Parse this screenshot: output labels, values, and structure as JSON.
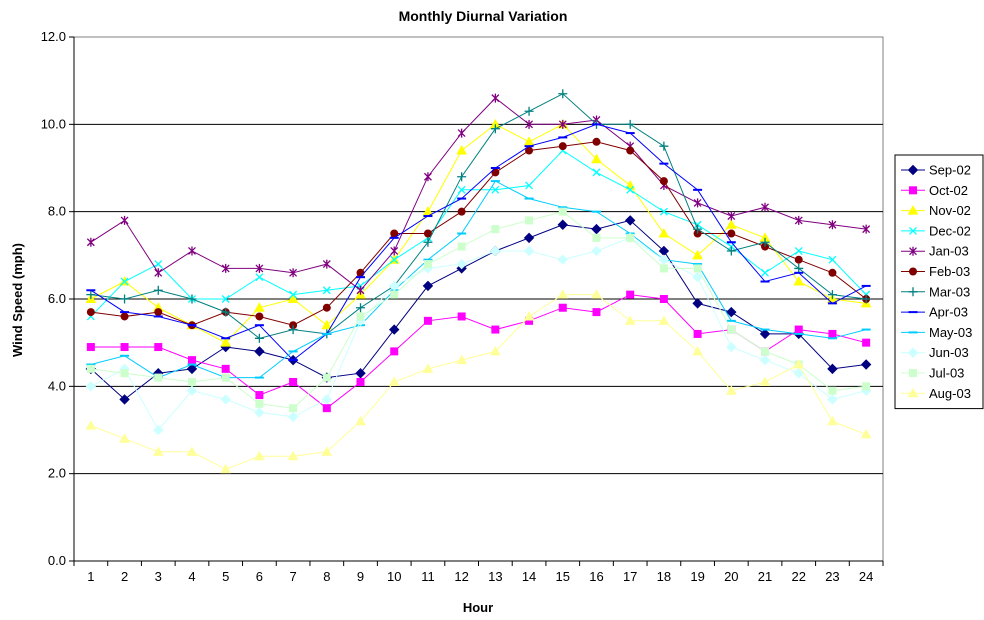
{
  "chart_data": {
    "type": "line",
    "title": "Monthly Diurnal Variation",
    "xlabel": "Hour",
    "ylabel": "Wind Speed (mph)",
    "ylim": [
      0,
      12
    ],
    "yticks": [
      "0.0",
      "2.0",
      "4.0",
      "6.0",
      "8.0",
      "10.0",
      "12.0"
    ],
    "categories": [
      "1",
      "2",
      "3",
      "4",
      "5",
      "6",
      "7",
      "8",
      "9",
      "10",
      "11",
      "12",
      "13",
      "14",
      "15",
      "16",
      "17",
      "18",
      "19",
      "20",
      "21",
      "22",
      "23",
      "24"
    ],
    "grid": "horizontal major gridlines",
    "legend_position": "right",
    "series": [
      {
        "name": "Sep-02",
        "color": "#000080",
        "marker": "diamond",
        "values": [
          4.4,
          3.7,
          4.3,
          4.4,
          4.9,
          4.8,
          4.6,
          4.2,
          4.3,
          5.3,
          6.3,
          6.7,
          7.1,
          7.4,
          7.7,
          7.6,
          7.8,
          7.1,
          5.9,
          5.7,
          5.2,
          5.2,
          4.4,
          4.5
        ]
      },
      {
        "name": "Oct-02",
        "color": "#FF00FF",
        "marker": "square",
        "values": [
          4.9,
          4.9,
          4.9,
          4.6,
          4.4,
          3.8,
          4.1,
          3.5,
          4.1,
          4.8,
          5.5,
          5.6,
          5.3,
          5.5,
          5.8,
          5.7,
          6.1,
          6.0,
          5.2,
          5.3,
          4.8,
          5.3,
          5.2,
          5.0
        ]
      },
      {
        "name": "Nov-02",
        "color": "#FFFF00",
        "marker": "triangle",
        "values": [
          6.0,
          6.4,
          5.8,
          5.4,
          5.0,
          5.8,
          6.0,
          5.4,
          6.1,
          6.9,
          8.0,
          9.4,
          10.0,
          9.6,
          10.0,
          9.2,
          8.6,
          7.5,
          7.0,
          7.7,
          7.4,
          6.4,
          6.0,
          5.9
        ]
      },
      {
        "name": "Dec-02",
        "color": "#00FFFF",
        "marker": "x",
        "values": [
          5.6,
          6.4,
          6.8,
          6.0,
          6.0,
          6.5,
          6.1,
          6.2,
          6.3,
          6.9,
          7.4,
          8.5,
          8.5,
          8.6,
          9.4,
          8.9,
          8.5,
          8.0,
          7.7,
          7.2,
          6.6,
          7.1,
          6.9,
          6.1
        ]
      },
      {
        "name": "Jan-03",
        "color": "#800080",
        "marker": "star",
        "values": [
          7.3,
          7.8,
          6.6,
          7.1,
          6.7,
          6.7,
          6.6,
          6.8,
          6.2,
          7.1,
          8.8,
          9.8,
          10.6,
          10.0,
          10.0,
          10.1,
          9.5,
          8.6,
          8.2,
          7.9,
          8.1,
          7.8,
          7.7,
          7.6
        ]
      },
      {
        "name": "Feb-03",
        "color": "#800000",
        "marker": "circle",
        "values": [
          5.7,
          5.6,
          5.7,
          5.4,
          5.7,
          5.6,
          5.4,
          5.8,
          6.6,
          7.5,
          7.5,
          8.0,
          8.9,
          9.4,
          9.5,
          9.6,
          9.4,
          8.7,
          7.5,
          7.5,
          7.2,
          6.9,
          6.6,
          6.0
        ]
      },
      {
        "name": "Mar-03",
        "color": "#008080",
        "marker": "plus",
        "values": [
          6.1,
          6.0,
          6.2,
          6.0,
          5.7,
          5.1,
          5.3,
          5.2,
          5.8,
          6.3,
          7.3,
          8.8,
          9.9,
          10.3,
          10.7,
          10.0,
          10.0,
          9.5,
          7.6,
          7.1,
          7.3,
          6.7,
          6.1,
          6.0
        ]
      },
      {
        "name": "Apr-03",
        "color": "#0000FF",
        "marker": "dash",
        "values": [
          6.2,
          5.7,
          5.6,
          5.4,
          5.1,
          5.4,
          4.6,
          5.2,
          6.5,
          7.4,
          7.9,
          8.3,
          9.0,
          9.5,
          9.7,
          10.0,
          9.8,
          9.1,
          8.5,
          7.3,
          6.4,
          6.6,
          5.9,
          6.3
        ]
      },
      {
        "name": "May-03",
        "color": "#00CCFF",
        "marker": "dash",
        "values": [
          4.5,
          4.7,
          4.2,
          4.5,
          4.2,
          4.2,
          4.8,
          5.2,
          5.4,
          6.2,
          6.9,
          7.5,
          8.7,
          8.3,
          8.1,
          8.0,
          7.5,
          6.9,
          6.8,
          5.5,
          5.3,
          5.2,
          5.1,
          5.3
        ]
      },
      {
        "name": "Jun-03",
        "color": "#CCFFFF",
        "marker": "diamond",
        "values": [
          4.0,
          4.4,
          3.0,
          3.9,
          3.7,
          3.4,
          3.3,
          3.7,
          5.5,
          6.3,
          6.7,
          6.8,
          7.1,
          7.1,
          6.9,
          7.1,
          7.4,
          6.9,
          6.5,
          4.9,
          4.6,
          4.3,
          3.7,
          3.9
        ]
      },
      {
        "name": "Jul-03",
        "color": "#CCFFCC",
        "marker": "square",
        "values": [
          4.4,
          4.3,
          4.2,
          4.1,
          4.2,
          3.6,
          3.5,
          4.2,
          5.6,
          6.1,
          6.8,
          7.2,
          7.6,
          7.8,
          8.0,
          7.4,
          7.4,
          6.7,
          6.7,
          5.3,
          4.8,
          4.5,
          3.9,
          4.0
        ]
      },
      {
        "name": "Aug-03",
        "color": "#FFFF99",
        "marker": "triangle",
        "values": [
          3.1,
          2.8,
          2.5,
          2.5,
          2.1,
          2.4,
          2.4,
          2.5,
          3.2,
          4.1,
          4.4,
          4.6,
          4.8,
          5.6,
          6.1,
          6.1,
          5.5,
          5.5,
          4.8,
          3.9,
          4.1,
          4.5,
          3.2,
          2.9
        ]
      }
    ]
  }
}
